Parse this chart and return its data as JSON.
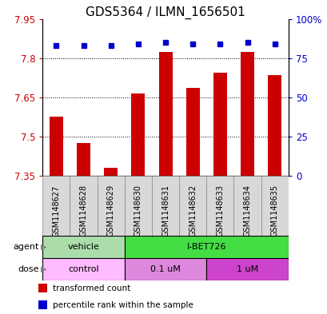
{
  "title": "GDS5364 / ILMN_1656501",
  "samples": [
    "GSM1148627",
    "GSM1148628",
    "GSM1148629",
    "GSM1148630",
    "GSM1148631",
    "GSM1148632",
    "GSM1148633",
    "GSM1148634",
    "GSM1148635"
  ],
  "bar_values": [
    7.575,
    7.475,
    7.38,
    7.665,
    7.825,
    7.685,
    7.745,
    7.825,
    7.735
  ],
  "percentile_values": [
    83,
    83,
    83,
    84,
    85,
    84,
    84,
    85,
    84
  ],
  "bar_bottom": 7.35,
  "ylim_left": [
    7.35,
    7.95
  ],
  "ylim_right": [
    0,
    100
  ],
  "yticks_left": [
    7.35,
    7.5,
    7.65,
    7.8,
    7.95
  ],
  "yticks_right": [
    0,
    25,
    50,
    75,
    100
  ],
  "ytick_labels_left": [
    "7.35",
    "7.5",
    "7.65",
    "7.8",
    "7.95"
  ],
  "ytick_labels_right": [
    "0",
    "25",
    "50",
    "75",
    "100%"
  ],
  "bar_color": "#cc0000",
  "dot_color": "#0000cc",
  "bar_width": 0.5,
  "agent_labels": [
    {
      "label": "vehicle",
      "start": 0,
      "end": 3,
      "color": "#aaddaa"
    },
    {
      "label": "I-BET726",
      "start": 3,
      "end": 9,
      "color": "#44dd44"
    }
  ],
  "dose_labels": [
    {
      "label": "control",
      "start": 0,
      "end": 3,
      "color": "#ffbbff"
    },
    {
      "label": "0.1 uM",
      "start": 3,
      "end": 6,
      "color": "#dd88dd"
    },
    {
      "label": "1 uM",
      "start": 6,
      "end": 9,
      "color": "#cc44cc"
    }
  ],
  "legend_items": [
    {
      "color": "#cc0000",
      "label": "transformed count"
    },
    {
      "color": "#0000cc",
      "label": "percentile rank within the sample"
    }
  ],
  "ylabel_left_color": "#cc0000",
  "ylabel_right_color": "#0000cc",
  "title_fontsize": 11,
  "tick_fontsize": 8.5,
  "sample_fontsize": 7,
  "row_fontsize": 8
}
